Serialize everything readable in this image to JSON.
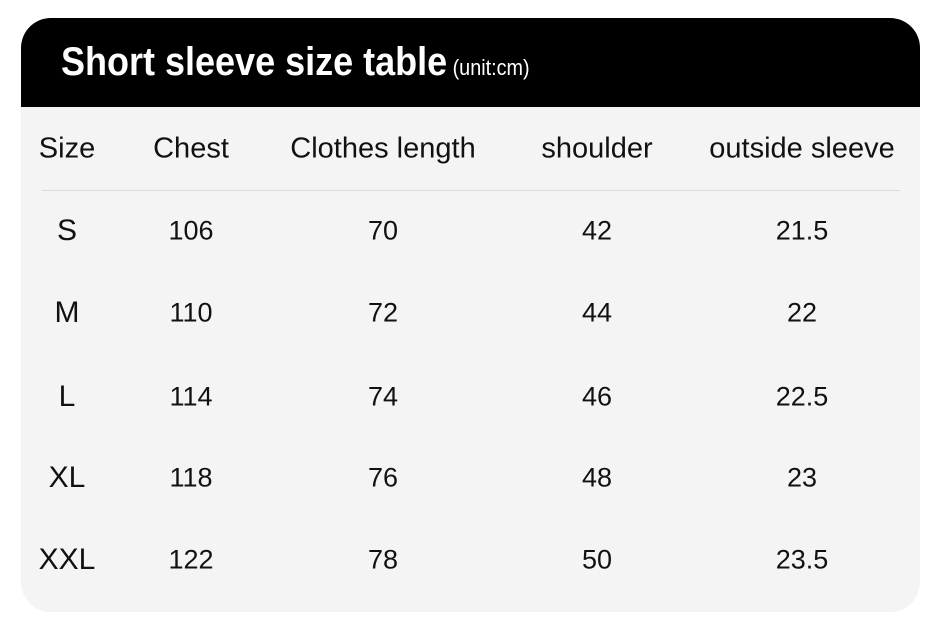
{
  "title": "Short sleeve size table",
  "unit": "(unit:cm)",
  "columns": [
    "Size",
    "Chest",
    "Clothes length",
    "shoulder",
    "outside sleeve"
  ],
  "rows": [
    [
      "S",
      "106",
      "70",
      "42",
      "21.5"
    ],
    [
      "M",
      "110",
      "72",
      "44",
      "22"
    ],
    [
      "L",
      "114",
      "74",
      "46",
      "22.5"
    ],
    [
      "XL",
      "118",
      "76",
      "48",
      "23"
    ],
    [
      "XXL",
      "122",
      "78",
      "50",
      "23.5"
    ]
  ]
}
